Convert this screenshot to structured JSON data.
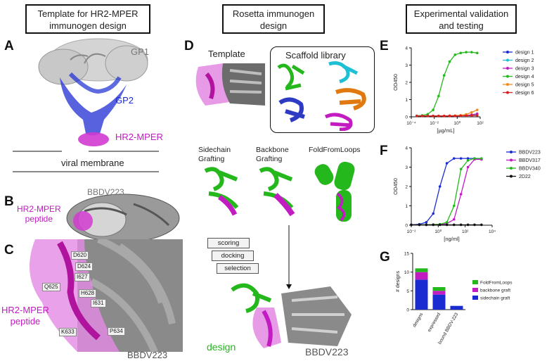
{
  "headers": {
    "left": "Template for HR2-MPER immunogen design",
    "middle": "Rosetta immunogen design",
    "right": "Experimental validation and testing"
  },
  "panel_letters": [
    "A",
    "B",
    "C",
    "D",
    "E",
    "F",
    "G"
  ],
  "panelA": {
    "gp1": "GP1",
    "gp2": "GP2",
    "hr2": "HR2-MPER",
    "membrane": "viral membrane"
  },
  "panelB": {
    "antibody": "BBDV223",
    "peptide": "HR2-MPER\npeptide"
  },
  "panelC": {
    "residues": [
      "D620",
      "D624",
      "I627",
      "Q625",
      "H628",
      "I631",
      "K633",
      "P634"
    ],
    "peptide": "HR2-MPER\npeptide",
    "antibody": "BBDV223"
  },
  "panelD": {
    "template": "Template",
    "library": "Scaffold library",
    "methods": [
      "Sidechain\nGrafting",
      "Backbone\nGrafting",
      "FoldFromLoops"
    ],
    "steps": [
      "scoring",
      "docking",
      "selection"
    ],
    "design": "design",
    "antibody": "BBDV223"
  },
  "colors": {
    "magenta": "#c21bc2",
    "blue": "#1a2bd1",
    "green": "#25b81d",
    "gray": "#777777"
  },
  "chart_data": [
    {
      "type": "line",
      "panel": "E",
      "xlabel": "[µg/mL]",
      "ylabel": "OD450",
      "xscale": "log",
      "xlim": [
        0.0001,
        100
      ],
      "ylim": [
        0,
        4
      ],
      "xticks": [
        "10⁻⁴",
        "10⁻²",
        "10⁰",
        "10²"
      ],
      "yticks": [
        "0",
        "1",
        "2",
        "3",
        "4"
      ],
      "legend_position": "right",
      "x": [
        0.0003,
        0.0009,
        0.0027,
        0.008,
        0.024,
        0.072,
        0.22,
        0.65,
        2,
        6,
        18,
        55
      ],
      "series": [
        {
          "name": "design 1",
          "color": "#1a2bd1",
          "values": [
            0.05,
            0.05,
            0.05,
            0.05,
            0.05,
            0.05,
            0.06,
            0.06,
            0.07,
            0.08,
            0.09,
            0.1
          ]
        },
        {
          "name": "design 2",
          "color": "#1fc0d6",
          "values": [
            0.05,
            0.05,
            0.05,
            0.05,
            0.05,
            0.05,
            0.05,
            0.06,
            0.07,
            0.08,
            0.1,
            0.12
          ]
        },
        {
          "name": "design 3",
          "color": "#c21bc2",
          "values": [
            0.05,
            0.05,
            0.05,
            0.05,
            0.05,
            0.05,
            0.06,
            0.06,
            0.07,
            0.08,
            0.12,
            0.18
          ]
        },
        {
          "name": "design 4",
          "color": "#25b81d",
          "values": [
            0.06,
            0.08,
            0.15,
            0.4,
            1.2,
            2.4,
            3.2,
            3.6,
            3.7,
            3.75,
            3.75,
            3.7
          ]
        },
        {
          "name": "design 5",
          "color": "#f08a1c",
          "values": [
            0.05,
            0.05,
            0.05,
            0.05,
            0.05,
            0.05,
            0.06,
            0.07,
            0.09,
            0.14,
            0.26,
            0.4
          ]
        },
        {
          "name": "design 6",
          "color": "#d62020",
          "values": [
            0.05,
            0.05,
            0.05,
            0.05,
            0.05,
            0.05,
            0.05,
            0.05,
            0.06,
            0.06,
            0.07,
            0.08
          ]
        }
      ]
    },
    {
      "type": "line",
      "panel": "F",
      "xlabel": "[ng/ml]",
      "ylabel": "OD450",
      "xscale": "log",
      "xlim": [
        0.01,
        100000
      ],
      "ylim": [
        0,
        4
      ],
      "xticks": [
        "10⁻²",
        "10⁰",
        "10²",
        "10⁴"
      ],
      "yticks": [
        "0",
        "1",
        "2",
        "3",
        "4"
      ],
      "legend_position": "right",
      "x": [
        0.01,
        0.05,
        0.2,
        0.8,
        3,
        12,
        50,
        200,
        800,
        3000,
        12000
      ],
      "series": [
        {
          "name": "BBDV223",
          "color": "#1a2bd1",
          "values": [
            0.02,
            0.05,
            0.15,
            0.6,
            2.0,
            3.2,
            3.45,
            3.45,
            3.45,
            3.45,
            3.4
          ]
        },
        {
          "name": "BBDV317",
          "color": "#c21bc2",
          "values": [
            0.02,
            0.02,
            0.02,
            0.03,
            0.04,
            0.08,
            0.3,
            1.6,
            3.0,
            3.4,
            3.4
          ]
        },
        {
          "name": "BBDV340",
          "color": "#25b81d",
          "values": [
            0.02,
            0.02,
            0.02,
            0.03,
            0.05,
            0.15,
            1.0,
            2.9,
            3.35,
            3.45,
            3.45
          ]
        },
        {
          "name": "2D22",
          "color": "#111111",
          "values": [
            0.02,
            0.02,
            0.02,
            0.02,
            0.02,
            0.02,
            0.02,
            0.02,
            0.02,
            0.02,
            0.02
          ]
        }
      ]
    },
    {
      "type": "bar",
      "panel": "G",
      "stacked": true,
      "ylabel": "# designs",
      "ylim": [
        0,
        15
      ],
      "yticks": [
        "0",
        "5",
        "10",
        "15"
      ],
      "categories": [
        "designs",
        "expressed",
        "bound BBDV-223"
      ],
      "legend_position": "right",
      "series": [
        {
          "name": "FoldFromLoops",
          "color": "#25b81d",
          "values": [
            1,
            1,
            0
          ]
        },
        {
          "name": "backbone graft",
          "color": "#c21bc2",
          "values": [
            2,
            1,
            0
          ]
        },
        {
          "name": "sidechain graft",
          "color": "#1a2bd1",
          "values": [
            8,
            4,
            1
          ]
        }
      ]
    }
  ]
}
